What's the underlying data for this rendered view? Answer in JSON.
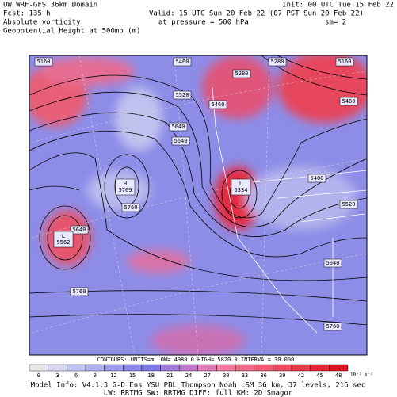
{
  "header": {
    "left": [
      "UW WRF-GFS 36km Domain",
      "Fcst:  135 h",
      "Absolute vorticity",
      "Geopotential Height at 500mb (m)"
    ],
    "center": [
      "Valid: 15 UTC Sun 20 Feb 22 (07 PST Sun 20 Feb 22)",
      "at pressure =   500 hPa"
    ],
    "smoothing": "sm= 2",
    "right": "Init: 00 UTC Tue 15 Feb 22"
  },
  "map": {
    "labels": [
      "5160",
      "5460",
      "5280",
      "5520",
      "5460",
      "5400",
      "5640",
      "5640",
      "5760",
      "5640",
      "5760",
      "5460",
      "5520",
      "5280",
      "5640",
      "5760",
      "5160"
    ],
    "centers": [
      {
        "letter": "L",
        "value": "5562"
      },
      {
        "letter": "H",
        "value": "5769"
      },
      {
        "letter": "L",
        "value": "5334"
      }
    ]
  },
  "contours_line": "CONTOURS:  UNITS=m   LOW=   4980.0     HIGH=   5820.0     INTERVAL=   30.000",
  "colorbar": {
    "labels": [
      "0",
      "3",
      "6",
      "9",
      "12",
      "15",
      "18",
      "21",
      "24",
      "27",
      "30",
      "33",
      "36",
      "39",
      "42",
      "45",
      "48"
    ],
    "unit": "10⁻⁵ s⁻¹"
  },
  "footer": [
    "Model Info: V4.1.3    G-D Ens YSU PBL  Thompson    Noah LSM  36 km,  37 levels,  216 sec",
    "LW: RRTMG SW: RRTMG    DIFF: full    KM: 2D Smagor"
  ]
}
